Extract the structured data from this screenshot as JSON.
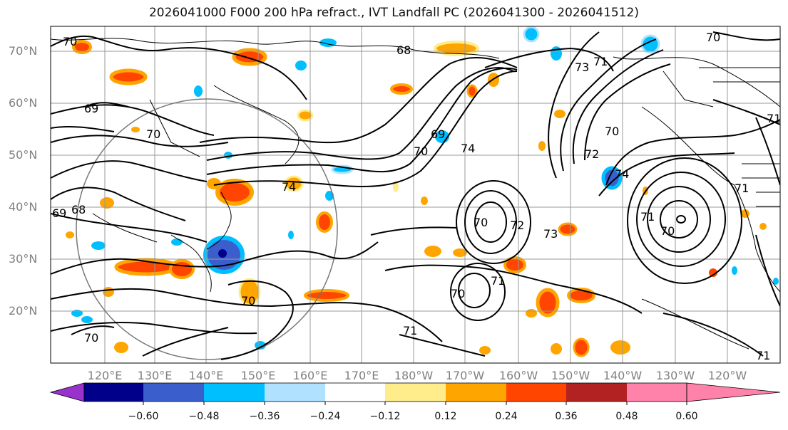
{
  "title": "2026041000 F000 200 hPa refract., IVT Landfall PC (2026041300 - 2026041512)",
  "lat_labels": [
    "70°N",
    "60°N",
    "50°N",
    "40°N",
    "30°N",
    "20°N"
  ],
  "lon_labels": [
    "120°E",
    "130°E",
    "140°E",
    "150°E",
    "160°E",
    "170°E",
    "180°W",
    "170°W",
    "160°W",
    "150°W",
    "140°W",
    "130°W",
    "120°W"
  ],
  "contour_labels": [
    "70",
    "69",
    "68",
    "70",
    "73",
    "71",
    "70",
    "71",
    "69",
    "70",
    "74",
    "70",
    "72",
    "74",
    "71",
    "70",
    "72",
    "73",
    "71",
    "70",
    "70",
    "71",
    "70",
    "68",
    "69",
    "70",
    "74",
    "71",
    "71"
  ],
  "colorbar": {
    "ticks": [
      "−0.60",
      "−0.48",
      "−0.36",
      "−0.24",
      "−0.12",
      "0.12",
      "0.24",
      "0.36",
      "0.48",
      "0.60"
    ],
    "colors": [
      "#9932cc",
      "#00008b",
      "#3a5fcd",
      "#00bfff",
      "#b0e2ff",
      "#ffffff",
      "#ffec8b",
      "#ffa500",
      "#ff4500",
      "#b22222",
      "#ff82ab"
    ]
  }
}
